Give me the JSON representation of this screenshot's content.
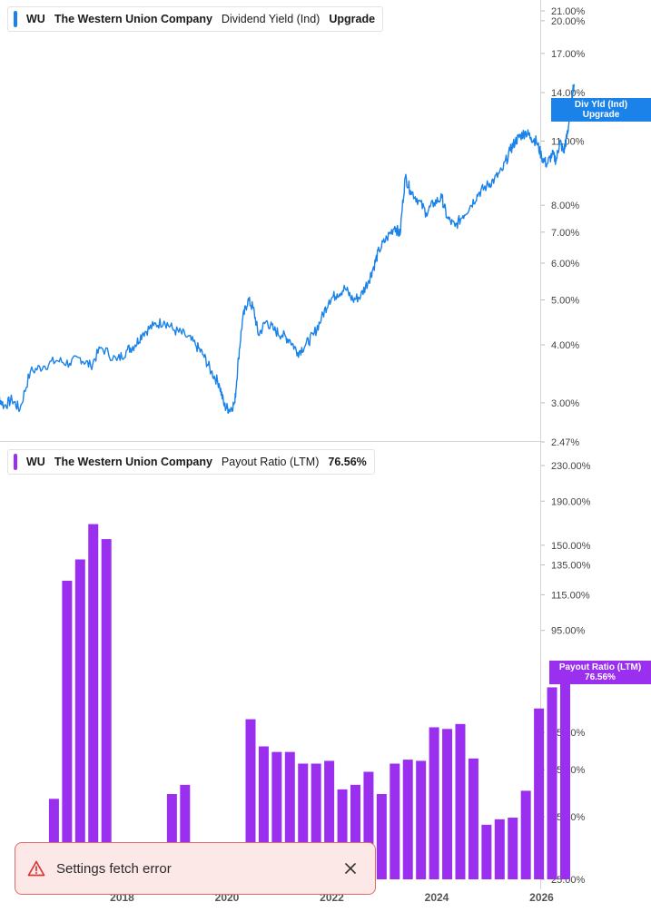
{
  "colors": {
    "dividend_line": "#1a82e8",
    "payout_bar": "#9b2ff0",
    "axis_text": "#444444",
    "toast_bg": "#fde8e8",
    "toast_border": "#e06a6a",
    "error_icon": "#d93636"
  },
  "legend_top": {
    "ticker": "WU",
    "company": "The Western Union Company",
    "metric": "Dividend Yield (Ind)",
    "value": "Upgrade"
  },
  "legend_bottom": {
    "ticker": "WU",
    "company": "The Western Union Company",
    "metric": "Payout Ratio (LTM)",
    "value": "76.56%"
  },
  "tag_top": {
    "line1": "Div Yld (Ind)",
    "line2": "Upgrade"
  },
  "tag_bottom": {
    "line1": "Payout Ratio (LTM)",
    "line2": "76.56%"
  },
  "toast": {
    "message": "Settings fetch error",
    "icon": "warning-triangle-icon",
    "close_icon": "close-icon"
  },
  "chart_data": [
    {
      "type": "line",
      "series": [
        {
          "name": "Dividend Yield (Ind)"
        }
      ],
      "y_scale": "log",
      "ylim": [
        2.47,
        21.0
      ],
      "xlim": [
        2015.5,
        2026.7
      ],
      "y_ticks": [
        "21.00%",
        "20.00%",
        "17.00%",
        "14.00%",
        "11.00%",
        "8.00%",
        "7.00%",
        "6.00%",
        "5.00%",
        "4.00%",
        "3.00%",
        "2.47%"
      ],
      "y_tick_values": [
        21,
        20,
        17,
        14,
        11,
        8,
        7,
        6,
        5,
        4,
        3,
        2.47
      ],
      "x": [
        2015.5,
        2015.6,
        2015.75,
        2015.9,
        2016.05,
        2016.25,
        2016.5,
        2016.75,
        2017.0,
        2017.2,
        2017.4,
        2017.6,
        2017.9,
        2018.1,
        2018.25,
        2018.4,
        2018.6,
        2018.8,
        2019.0,
        2019.2,
        2019.4,
        2019.55,
        2019.7,
        2019.85,
        2019.95,
        2020.05,
        2020.15,
        2020.22,
        2020.3,
        2020.4,
        2020.5,
        2020.6,
        2020.75,
        2020.9,
        2021.05,
        2021.2,
        2021.35,
        2021.5,
        2021.65,
        2021.8,
        2021.95,
        2022.1,
        2022.25,
        2022.4,
        2022.55,
        2022.7,
        2022.8,
        2022.9,
        2023.05,
        2023.2,
        2023.3,
        2023.4,
        2023.5,
        2023.65,
        2023.8,
        2023.95,
        2024.1,
        2024.2,
        2024.35,
        2024.5,
        2024.65,
        2024.8,
        2024.95,
        2025.1,
        2025.25,
        2025.4,
        2025.5,
        2025.6,
        2025.7,
        2025.8,
        2025.9,
        2026.0,
        2026.1,
        2026.2,
        2026.28,
        2026.35,
        2026.42,
        2026.48,
        2026.52,
        2026.57,
        2026.62
      ],
      "values": [
        3.1,
        3.15,
        2.95,
        3.05,
        2.9,
        3.5,
        3.6,
        3.7,
        3.65,
        3.75,
        3.6,
        3.95,
        3.7,
        3.9,
        4.0,
        4.25,
        4.4,
        4.5,
        4.3,
        4.2,
        4.0,
        3.8,
        3.5,
        3.3,
        2.95,
        2.9,
        3.0,
        3.75,
        4.55,
        5.0,
        4.8,
        4.2,
        4.5,
        4.3,
        4.2,
        4.1,
        3.85,
        4.0,
        4.2,
        4.55,
        5.0,
        5.15,
        5.3,
        5.0,
        5.1,
        5.5,
        5.9,
        6.4,
        6.8,
        7.2,
        6.9,
        9.2,
        8.6,
        8.2,
        7.7,
        8.1,
        8.3,
        7.5,
        7.2,
        7.6,
        8.0,
        8.5,
        8.8,
        9.1,
        9.5,
        10.5,
        11.0,
        11.3,
        11.5,
        11.2,
        11.0,
        10.2,
        9.8,
        10.3,
        10.0,
        11.0,
        10.4,
        11.2,
        12.0,
        13.5,
        14.6
      ]
    },
    {
      "type": "bar",
      "series": [
        {
          "name": "Payout Ratio (LTM)"
        }
      ],
      "y_scale": "log",
      "ylim": [
        25.0,
        230.0
      ],
      "y_ticks": [
        "230.00%",
        "190.00%",
        "150.00%",
        "135.00%",
        "115.00%",
        "95.00%",
        "55.00%",
        "45.00%",
        "35.00%",
        "25.00%"
      ],
      "y_tick_values": [
        230,
        190,
        150,
        135,
        115,
        95,
        55,
        45,
        35,
        25
      ],
      "x_ticks": [
        "2018",
        "2020",
        "2022",
        "2024",
        "2026"
      ],
      "x_tick_values": [
        2018,
        2020,
        2022,
        2024,
        2026
      ],
      "x": [
        2016.7,
        2016.95,
        2017.2,
        2017.45,
        2017.7,
        2018.95,
        2019.2,
        2019.95,
        2020.2,
        2020.45,
        2020.7,
        2020.95,
        2021.2,
        2021.45,
        2021.7,
        2021.95,
        2022.2,
        2022.45,
        2022.7,
        2022.95,
        2023.2,
        2023.45,
        2023.7,
        2023.95,
        2024.2,
        2024.45,
        2024.7,
        2024.95,
        2025.2,
        2025.45,
        2025.7,
        2025.95,
        2026.2,
        2026.45
      ],
      "values": [
        38.5,
        124,
        139,
        168,
        155,
        39.5,
        41.5,
        30.2,
        30.5,
        59,
        51,
        49.5,
        49.5,
        46.5,
        46.5,
        47.2,
        40.5,
        41.5,
        44.5,
        39.5,
        46.5,
        47.5,
        47.2,
        56.5,
        56,
        57.5,
        47.8,
        33.5,
        34.5,
        34.8,
        40.2,
        62.5,
        70,
        76.56
      ]
    }
  ]
}
